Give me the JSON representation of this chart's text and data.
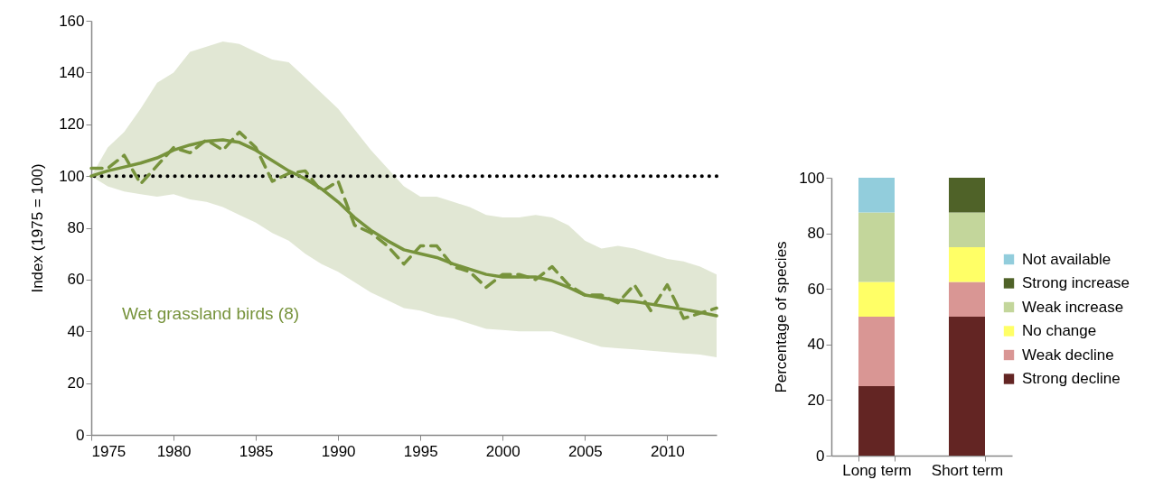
{
  "chart_data": [
    {
      "type": "line",
      "ylabel": "Index (1975 = 100)",
      "xlim": [
        1975,
        2013
      ],
      "ylim": [
        0,
        160
      ],
      "xticks": [
        1975,
        1980,
        1985,
        1990,
        1995,
        2000,
        2005,
        2010
      ],
      "yticks": [
        0,
        20,
        40,
        60,
        80,
        100,
        120,
        140,
        160
      ],
      "x": [
        1975,
        1976,
        1977,
        1978,
        1979,
        1980,
        1981,
        1982,
        1983,
        1984,
        1985,
        1986,
        1987,
        1988,
        1989,
        1990,
        1991,
        1992,
        1993,
        1994,
        1995,
        1996,
        1997,
        1998,
        1999,
        2000,
        2001,
        2002,
        2003,
        2004,
        2005,
        2006,
        2007,
        2008,
        2009,
        2010,
        2011,
        2012,
        2013
      ],
      "series": [
        {
          "name": "Wet grassland birds (8)",
          "color": "#77933c",
          "line_style": "solid",
          "values": [
            100,
            102,
            103.5,
            105,
            107,
            110,
            112,
            113.5,
            114,
            113,
            110,
            106,
            102,
            99,
            95,
            90,
            84,
            79,
            75,
            71.5,
            70,
            68.5,
            66,
            64,
            62,
            61,
            61,
            61,
            59.5,
            57,
            54,
            53,
            52,
            51.5,
            50.5,
            49.5,
            48.5,
            47.3,
            46
          ],
          "lower": [
            100,
            96,
            94,
            93,
            92,
            93,
            91,
            90,
            88,
            85,
            82,
            78,
            75,
            70,
            66,
            63,
            59,
            55,
            52,
            49,
            48,
            46,
            45,
            43,
            41,
            40.5,
            40,
            40,
            40,
            38,
            36,
            34,
            33.5,
            33,
            32.5,
            32,
            31.5,
            31,
            30
          ],
          "upper": [
            100,
            111,
            117,
            126,
            136,
            140,
            148,
            150,
            152,
            151,
            148,
            145,
            144,
            138,
            132,
            126,
            118,
            110,
            103,
            96,
            92,
            92,
            90,
            88,
            85,
            84,
            84,
            85,
            84,
            81,
            75,
            72,
            73,
            72,
            70,
            68,
            67,
            65,
            62
          ]
        },
        {
          "color": "#77933c",
          "line_style": "dashed",
          "values": [
            103,
            103,
            108,
            97,
            104,
            111,
            109,
            114,
            110,
            117,
            111,
            98,
            101,
            102,
            94,
            98,
            81,
            78,
            73,
            66,
            73,
            73,
            65,
            63,
            57,
            62,
            62,
            60,
            65,
            58,
            54,
            54,
            51,
            58,
            48,
            58,
            45,
            47,
            49
          ]
        }
      ],
      "ref_lines": [
        {
          "axis": "y",
          "value": 100,
          "color": "#000000",
          "line_style": "dotted"
        }
      ]
    },
    {
      "type": "bar",
      "stacked": true,
      "ylabel": "Percentage of species",
      "ylim": [
        0,
        100
      ],
      "yticks": [
        0,
        20,
        40,
        60,
        80,
        100
      ],
      "legend": "right",
      "categories": [
        "Long term",
        "Short term"
      ],
      "series": [
        {
          "name": "Strong decline",
          "color": "#632523",
          "values": [
            25,
            50
          ]
        },
        {
          "name": "Weak decline",
          "color": "#d99694",
          "values": [
            25,
            12.5
          ]
        },
        {
          "name": "No change",
          "color": "#ffff66",
          "values": [
            12.5,
            12.5
          ]
        },
        {
          "name": "Weak increase",
          "color": "#c3d69b",
          "values": [
            25,
            12.5
          ]
        },
        {
          "name": "Strong increase",
          "color": "#4f6228",
          "values": [
            0,
            12.5
          ]
        },
        {
          "name": "Not available",
          "color": "#92cddc",
          "values": [
            12.5,
            0
          ]
        }
      ]
    }
  ]
}
